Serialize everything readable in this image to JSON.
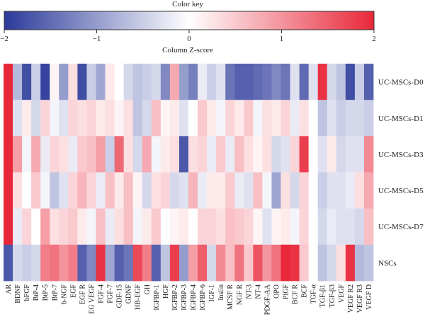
{
  "chart_data": {
    "type": "heatmap",
    "title": "",
    "color_key": {
      "title": "Color key",
      "xlabel": "Column Z-score",
      "range": [
        -2,
        2
      ],
      "ticks": [
        "-2",
        "-1",
        "0",
        "1",
        "2"
      ],
      "colors": {
        "low": "#2b3a9a",
        "mid": "#ffffff",
        "high": "#e8283a"
      }
    },
    "columns": [
      "AR",
      "BDNF",
      "bFGF",
      "BtP-4",
      "BtP-5",
      "BtP-7",
      "b-NGF",
      "EGF",
      "EGF R",
      "EG VEGF",
      "FGF-4",
      "FGF-7",
      "GDF-15",
      "GDNF",
      "HB-EGF",
      "GH",
      "IGFBP-1",
      "HGF",
      "IGFBP-2",
      "IGFBP-3",
      "IGFBP-4",
      "IGFBP-6",
      "IGF-1",
      "Inslin",
      "MCSF R",
      "NGF R",
      "NT-3",
      "NT-4",
      "PDGF-AA",
      "OPO",
      "PlGF",
      "BCF R",
      "BCF",
      "TGF-α",
      "TGF-β1",
      "TGF-β3",
      "VEGF",
      "VEGF R2",
      "VEGF R3",
      "VEGF D"
    ],
    "rows": [
      "UC-MSCs-D0",
      "UC-MSCs-D1",
      "UC-MSCs-D3",
      "UC-MSCs-D5",
      "UC-MSCs-D7",
      "NSCs"
    ],
    "values": [
      [
        2.0,
        -0.7,
        -1.8,
        -0.5,
        -1.9,
        0.1,
        -1.0,
        0.3,
        -1.8,
        -0.5,
        -0.9,
        0.2,
        0.0,
        -0.4,
        -0.6,
        -0.5,
        -0.4,
        -1.2,
        0.8,
        -1.0,
        -1.3,
        -0.2,
        -0.5,
        -0.3,
        -1.4,
        -1.6,
        -1.6,
        -1.5,
        -1.4,
        -1.2,
        -1.4,
        -0.3,
        -1.5,
        -0.3,
        1.9,
        -0.4,
        -0.6,
        -1.8,
        -0.5,
        -1.6
      ],
      [
        2.0,
        -0.3,
        0.2,
        -0.4,
        0.4,
        -0.1,
        -0.3,
        0.4,
        0.3,
        0.4,
        0.2,
        0.3,
        0.1,
        0.3,
        -0.6,
        -0.4,
        0.6,
        0.1,
        0.2,
        -0.3,
        0.0,
        0.5,
        0.2,
        -0.1,
        0.4,
        0.2,
        0.5,
        -0.1,
        0.3,
        0.2,
        0.4,
        -0.2,
        0.3,
        0.0,
        -0.6,
        -0.3,
        -0.5,
        -0.4,
        -0.4,
        -0.5
      ],
      [
        2.0,
        0.9,
        -0.1,
        0.8,
        -0.2,
        0.4,
        0.3,
        -0.2,
        0.5,
        0.6,
        0.9,
        -0.5,
        1.4,
        0.3,
        -0.4,
        0.8,
        -0.1,
        0.2,
        0.3,
        -1.7,
        0.3,
        0.4,
        -0.2,
        0.5,
        -0.2,
        0.6,
        0.3,
        0.1,
        0.3,
        -0.4,
        -0.3,
        0.4,
        1.8,
        0.0,
        -0.3,
        0.2,
        -0.4,
        -0.3,
        -0.3,
        1.1
      ],
      [
        2.0,
        0.3,
        0.0,
        0.5,
        -0.1,
        -0.6,
        -0.3,
        0.4,
        0.7,
        0.4,
        -0.2,
        0.6,
        0.2,
        0.6,
        0.1,
        -0.4,
        0.3,
        0.4,
        -0.4,
        -0.3,
        0.7,
        -0.2,
        0.2,
        0.2,
        0.5,
        -0.2,
        -0.3,
        0.6,
        -0.1,
        -0.9,
        0.3,
        -0.4,
        0.4,
        0.0,
        -0.5,
        -0.3,
        -0.3,
        -0.2,
        0.3,
        0.8
      ],
      [
        2.0,
        -0.2,
        0.4,
        0.0,
        0.9,
        0.3,
        0.4,
        0.5,
        0.2,
        -0.1,
        0.6,
        -0.2,
        0.3,
        0.6,
        -0.1,
        0.2,
        0.5,
        0.0,
        0.1,
        0.2,
        0.0,
        0.4,
        0.4,
        0.3,
        0.6,
        0.5,
        0.4,
        0.1,
        -0.3,
        0.1,
        0.2,
        -0.1,
        0.4,
        0.0,
        -0.4,
        -0.2,
        -0.3,
        -0.3,
        -0.4,
        0.6
      ],
      [
        -1.7,
        -0.4,
        -0.5,
        -0.4,
        1.2,
        1.3,
        1.0,
        1.2,
        -1.6,
        -1.2,
        1.9,
        -0.9,
        -1.6,
        -1.4,
        1.7,
        1.2,
        -1.6,
        -0.6,
        1.8,
        -1.0,
        0.9,
        1.5,
        -0.4,
        1.1,
        0.6,
        1.3,
        0.5,
        1.6,
        1.0,
        1.3,
        2.0,
        1.9,
        0.5,
        0.0,
        -0.6,
        -0.4,
        0.3,
        1.9,
        -0.7,
        -0.6
      ]
    ]
  }
}
